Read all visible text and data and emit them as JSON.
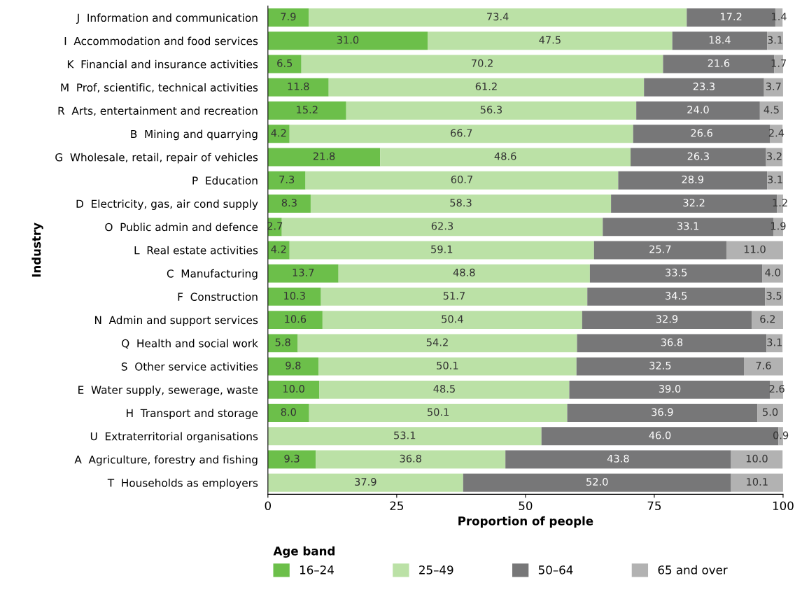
{
  "chart_data": {
    "type": "bar",
    "orientation": "horizontal",
    "stacked": true,
    "xlabel": "Proportion of people",
    "ylabel": "Industry",
    "legend_title": "Age band",
    "legend": "bottom",
    "grid": false,
    "categories": [
      "J  Information and communication",
      "I  Accommodation and food services",
      "K  Financial and insurance activities",
      "M  Prof, scientific, technical activities",
      "R  Arts, entertainment and recreation",
      "B  Mining and quarrying",
      "G  Wholesale, retail, repair of vehicles",
      "P  Education",
      "D  Electricity, gas, air cond supply",
      "O  Public admin and defence",
      "L  Real estate activities",
      "C  Manufacturing",
      "F  Construction",
      "N  Admin and support services",
      "Q  Health and social work",
      "S  Other service activities",
      "E  Water supply, sewerage, waste",
      "H  Transport and storage",
      "U  Extraterritorial organisations",
      "A  Agriculture, forestry and fishing",
      "T  Households as employers"
    ],
    "xlim": [
      0,
      100
    ],
    "xticks": [
      0,
      25,
      50,
      75,
      100
    ],
    "series": [
      {
        "name": "16–24",
        "color": "#6cbf4a",
        "values": [
          7.9,
          31.0,
          6.5,
          11.8,
          15.2,
          4.2,
          21.8,
          7.3,
          8.3,
          2.7,
          4.2,
          13.7,
          10.3,
          10.6,
          5.8,
          9.8,
          10.0,
          8.0,
          null,
          9.3,
          null
        ],
        "value_labels": [
          "7.9",
          "31.0",
          "6.5",
          "11.8",
          "15.2",
          "4.2",
          "21.8",
          "7.3",
          "8.3",
          "2.7",
          "4.2",
          "13.7",
          "10.3",
          "10.6",
          "5.8",
          "9.8",
          "10.0",
          "8.0",
          null,
          "9.3",
          null
        ]
      },
      {
        "name": "25–49",
        "color": "#bbe1a6",
        "values": [
          73.4,
          47.5,
          70.2,
          61.2,
          56.3,
          66.7,
          48.6,
          60.7,
          58.3,
          62.3,
          59.1,
          48.8,
          51.7,
          50.4,
          54.2,
          50.1,
          48.5,
          50.1,
          53.1,
          36.8,
          37.9
        ],
        "value_labels": [
          "73.4",
          "47.5",
          "70.2",
          "61.2",
          "56.3",
          "66.7",
          "48.6",
          "60.7",
          "58.3",
          "62.3",
          "59.1",
          "48.8",
          "51.7",
          "50.4",
          "54.2",
          "50.1",
          "48.5",
          "50.1",
          "53.1",
          "36.8",
          "37.9"
        ]
      },
      {
        "name": "50–64",
        "color": "#777778",
        "values": [
          17.2,
          18.4,
          21.6,
          23.3,
          24.0,
          26.6,
          26.3,
          28.9,
          32.2,
          33.1,
          25.7,
          33.5,
          34.5,
          32.9,
          36.8,
          32.5,
          39.0,
          36.9,
          46.0,
          43.8,
          52.0
        ],
        "value_labels": [
          "17.2",
          "18.4",
          "21.6",
          "23.3",
          "24.0",
          "26.6",
          "26.3",
          "28.9",
          "32.2",
          "33.1",
          "25.7",
          "33.5",
          "34.5",
          "32.9",
          "36.8",
          "32.5",
          "39.0",
          "36.9",
          "46.0",
          "43.8",
          "52.0"
        ]
      },
      {
        "name": "65 and over",
        "color": "#b2b2b2",
        "values": [
          1.4,
          3.1,
          1.7,
          3.7,
          4.5,
          2.4,
          3.2,
          3.1,
          1.2,
          1.9,
          11.0,
          4.0,
          3.5,
          6.2,
          3.1,
          7.6,
          2.6,
          5.0,
          0.9,
          10.0,
          10.1
        ],
        "value_labels": [
          "1.4",
          "3.1",
          "1.7",
          "3.7",
          "4.5",
          "2.4",
          "3.2",
          "3.1",
          "1.2",
          "1.9",
          "11.0",
          "4.0",
          "3.5",
          "6.2",
          "3.1",
          "7.6",
          "2.6",
          "5.0",
          "0.9",
          "10.0",
          "10.1"
        ]
      }
    ]
  }
}
